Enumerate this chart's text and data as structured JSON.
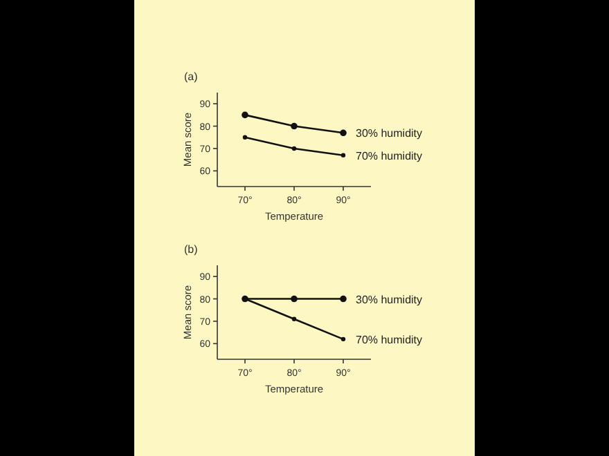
{
  "chart_data": [
    {
      "type": "line",
      "title": "(a)",
      "xlabel": "Temperature",
      "ylabel": "Mean score",
      "categories": [
        "70°",
        "80°",
        "90°"
      ],
      "ylim": [
        53,
        95
      ],
      "yticks": [
        60,
        70,
        80,
        90
      ],
      "grid": false,
      "marker": "circle",
      "line_style": "solid",
      "series": [
        {
          "name": "30% humidity",
          "color": "#111111",
          "values": [
            85,
            80,
            77
          ]
        },
        {
          "name": "70% humidity",
          "color": "#111111",
          "values": [
            75,
            70,
            67
          ]
        }
      ]
    },
    {
      "type": "line",
      "title": "(b)",
      "xlabel": "Temperature",
      "ylabel": "Mean score",
      "categories": [
        "70°",
        "80°",
        "90°"
      ],
      "ylim": [
        53,
        95
      ],
      "yticks": [
        60,
        70,
        80,
        90
      ],
      "grid": false,
      "marker": "circle",
      "line_style": "solid",
      "series": [
        {
          "name": "30% humidity",
          "color": "#111111",
          "values": [
            80,
            80,
            80
          ]
        },
        {
          "name": "70% humidity",
          "color": "#111111",
          "values": [
            80,
            71,
            62
          ]
        }
      ]
    }
  ]
}
